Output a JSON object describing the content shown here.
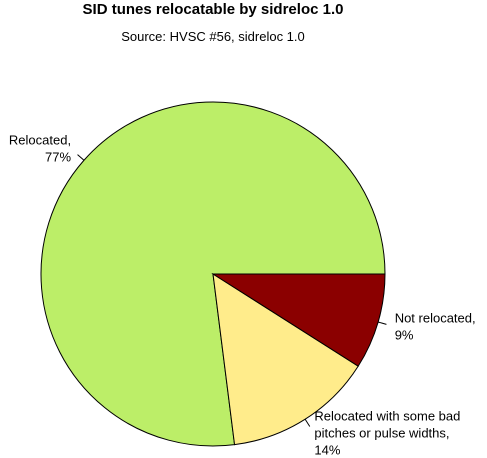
{
  "chart_data": {
    "type": "pie",
    "title": "SID tunes relocatable by sidreloc 1.0",
    "subtitle": "Source: HVSC #56, sidreloc 1.0",
    "categories": [
      "Relocated,",
      "Relocated with some bad pitches or pulse widths,",
      "Not relocated,"
    ],
    "values": [
      77,
      14,
      9
    ],
    "value_labels": [
      "77%",
      "14%",
      "9%"
    ],
    "colors": [
      "#bcee68",
      "#ffec8b",
      "#8b0000"
    ]
  }
}
